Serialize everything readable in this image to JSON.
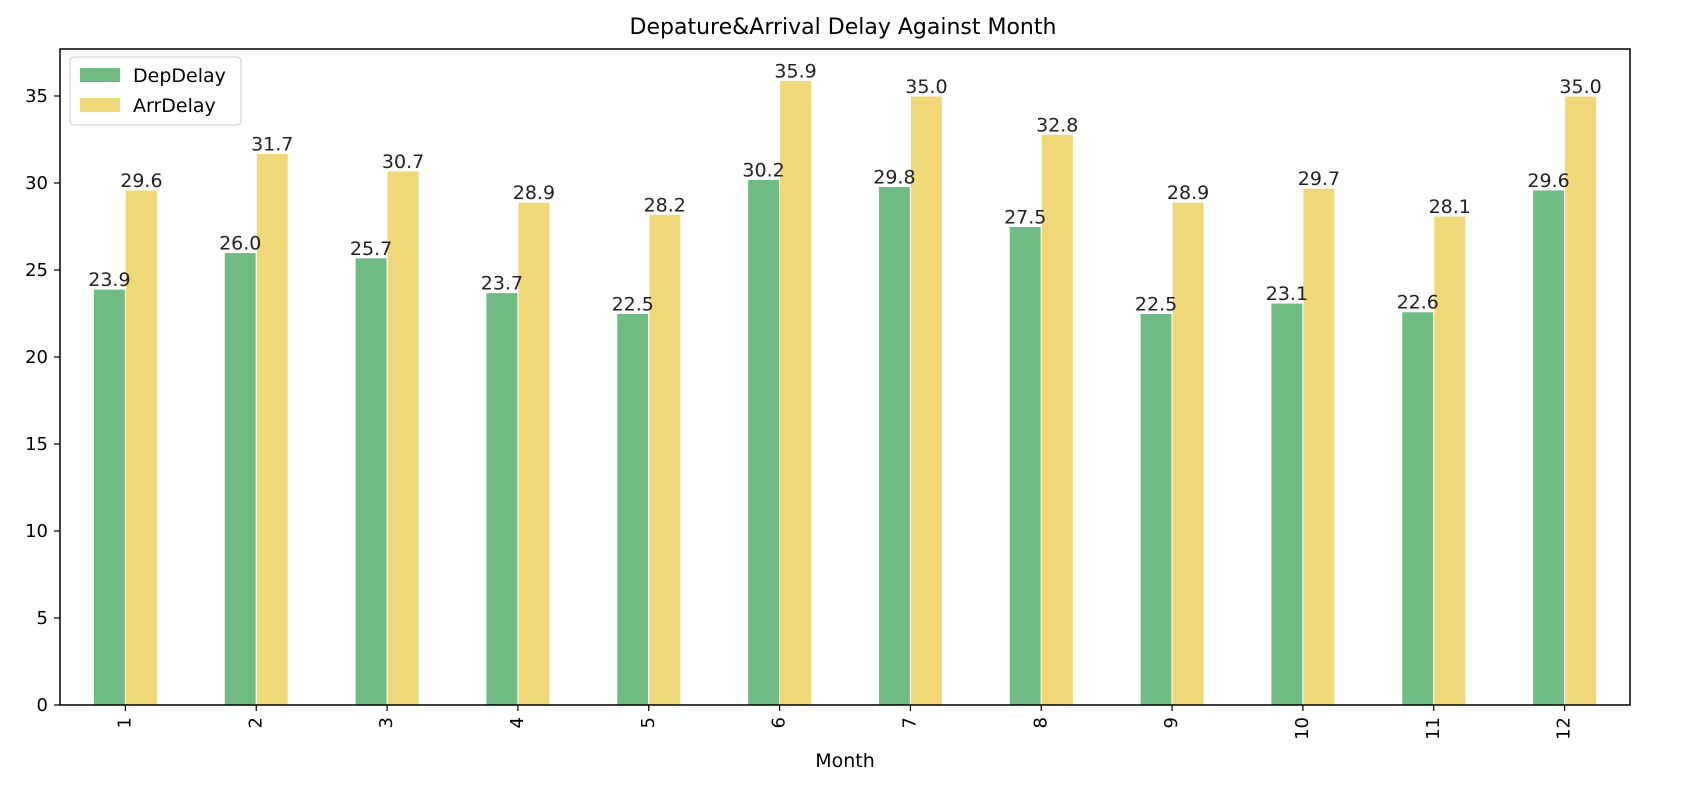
{
  "chart_data": {
    "type": "bar",
    "title": "Depature&Arrival Delay Against Month",
    "xlabel": "Month",
    "ylabel": "",
    "categories": [
      "1",
      "2",
      "3",
      "4",
      "5",
      "6",
      "7",
      "8",
      "9",
      "10",
      "11",
      "12"
    ],
    "series": [
      {
        "name": "DepDelay",
        "color": "#6fbd84",
        "values": [
          23.9,
          26.0,
          25.7,
          23.7,
          22.5,
          30.2,
          29.8,
          27.5,
          22.5,
          23.1,
          22.6,
          29.6
        ]
      },
      {
        "name": "ArrDelay",
        "color": "#f0d878",
        "values": [
          29.6,
          31.7,
          30.7,
          28.9,
          28.2,
          35.9,
          35.0,
          32.8,
          28.9,
          29.7,
          28.1,
          35.0
        ]
      }
    ],
    "ylim": [
      0,
      37.7
    ],
    "yticks": [
      0,
      5,
      10,
      15,
      20,
      25,
      30,
      35
    ],
    "xtick_rotation": "vertical",
    "grid": false,
    "legend_position": "top-left",
    "data_labels": true
  }
}
